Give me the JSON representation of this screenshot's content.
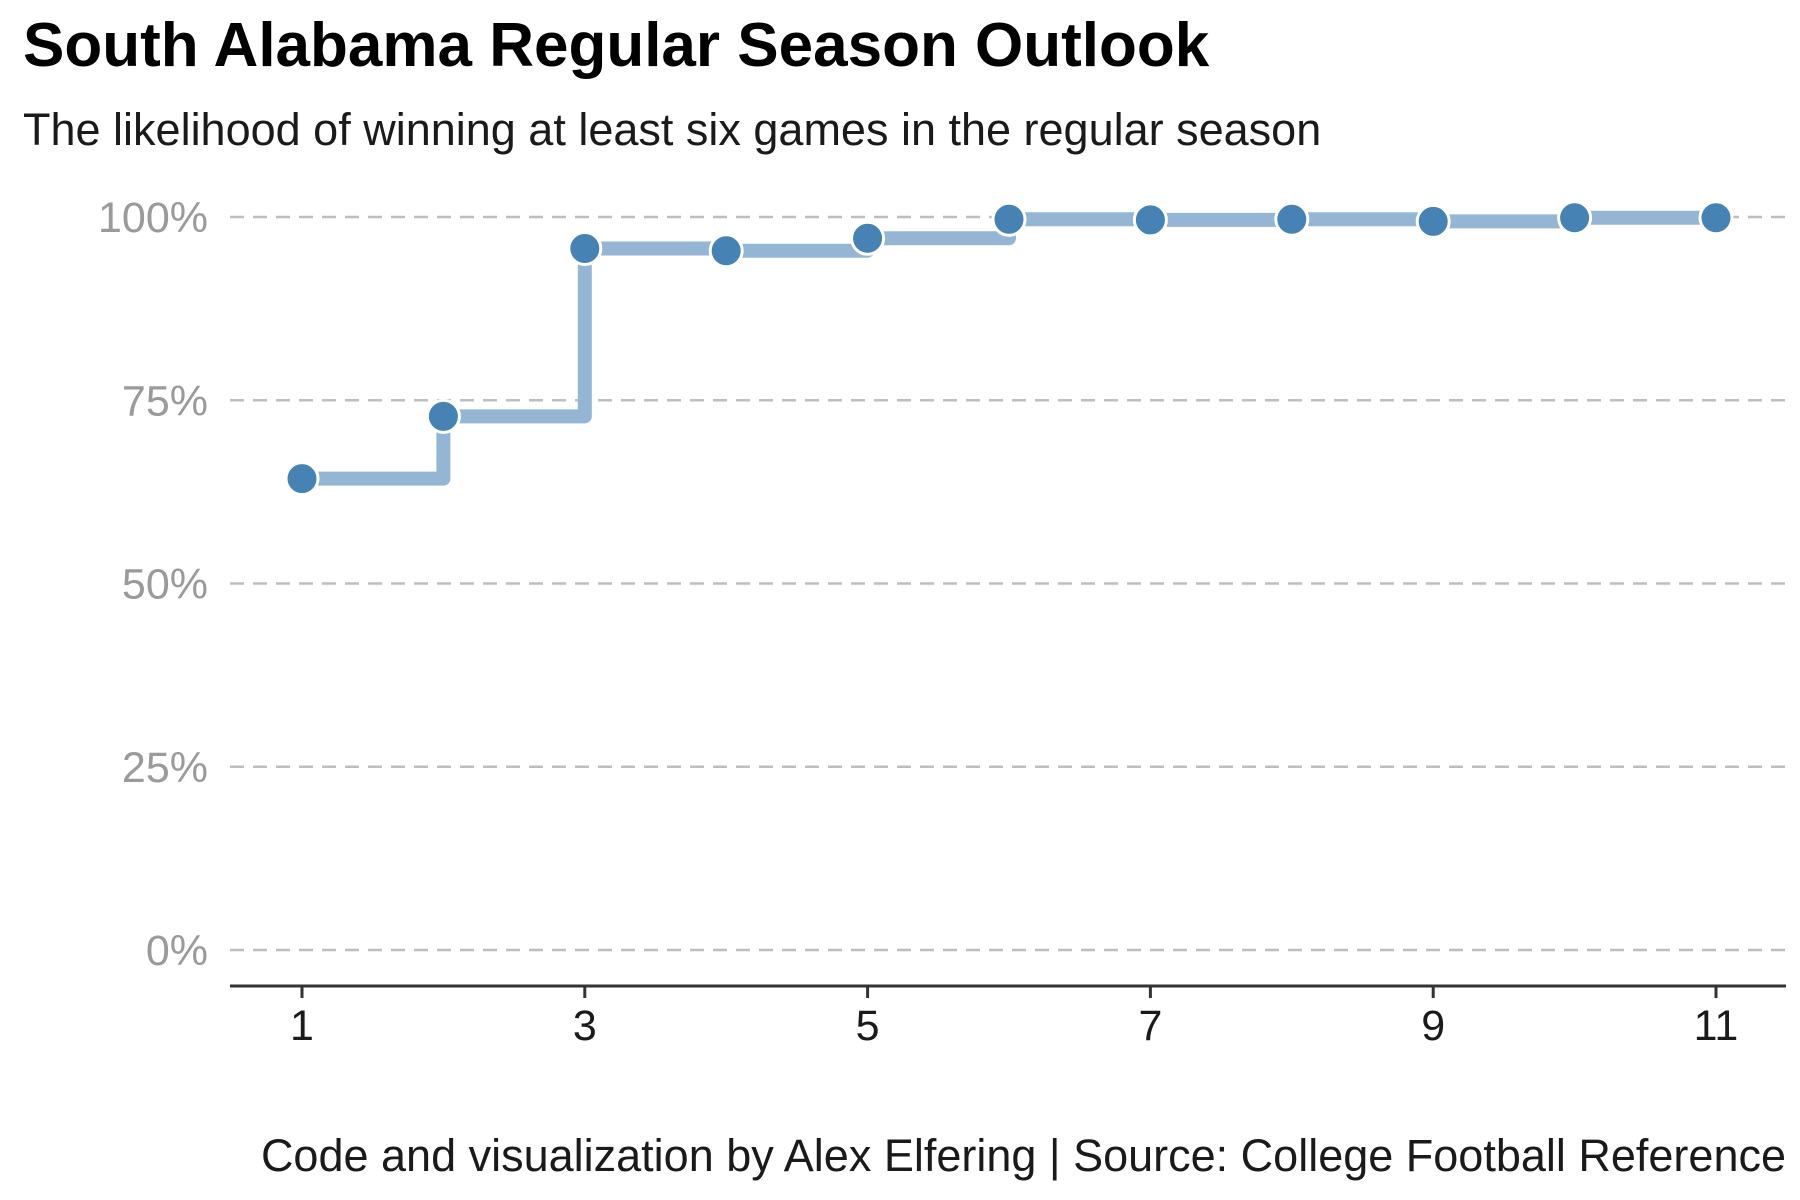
{
  "chart_data": {
    "type": "line",
    "title": "South Alabama Regular Season Outlook",
    "subtitle": "The likelihood of winning at least six games in the regular season",
    "caption": "Code and visualization by Alex Elfering | Source: College Football Reference",
    "xlabel": "",
    "ylabel": "",
    "x": [
      1,
      2,
      3,
      4,
      5,
      6,
      7,
      8,
      9,
      10,
      11
    ],
    "values": [
      64.3,
      72.8,
      95.7,
      95.4,
      97.1,
      99.7,
      99.6,
      99.7,
      99.4,
      99.9,
      99.9
    ],
    "x_ticks": [
      1,
      3,
      5,
      7,
      9,
      11
    ],
    "y_ticks": [
      0,
      25,
      50,
      75,
      100
    ],
    "y_tick_labels": [
      "0%",
      "25%",
      "50%",
      "75%",
      "100%"
    ],
    "ylim": [
      0,
      100
    ],
    "xlim": [
      0.5,
      11.5
    ],
    "grid": "horizontal dashed",
    "colors": {
      "point": "#4682B4",
      "step_line": "#94B6D4",
      "grid": "#BEBEBE",
      "axis": "#333333"
    }
  }
}
